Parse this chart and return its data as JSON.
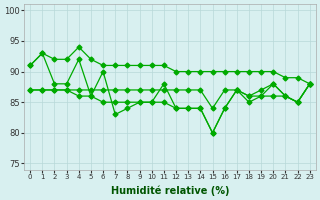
{
  "title": "",
  "xlabel": "Humidité relative (%)",
  "ylabel": "",
  "background_color": "#d8f0f0",
  "grid_color": "#b8d8d8",
  "line_color": "#00aa00",
  "marker_color": "#00aa00",
  "xlim": [
    -0.5,
    23.5
  ],
  "ylim": [
    74,
    101
  ],
  "yticks": [
    75,
    80,
    85,
    90,
    95,
    100
  ],
  "xtick_labels": [
    "0",
    "1",
    "2",
    "3",
    "4",
    "5",
    "6",
    "7",
    "8",
    "9",
    "10",
    "11",
    "12",
    "13",
    "14",
    "15",
    "16",
    "17",
    "18",
    "19",
    "20",
    "21",
    "22",
    "23"
  ],
  "series_top": [
    91,
    93,
    92,
    92,
    94,
    92,
    91,
    91,
    91,
    91,
    91,
    91,
    90,
    90,
    90,
    90,
    90,
    90,
    90,
    90,
    90,
    89,
    89,
    88
  ],
  "series_a": [
    91,
    93,
    88,
    88,
    92,
    86,
    90,
    83,
    84,
    85,
    85,
    88,
    84,
    84,
    84,
    80,
    84,
    87,
    86,
    87,
    88,
    86,
    85,
    88
  ],
  "series_b": [
    87,
    87,
    87,
    87,
    87,
    87,
    87,
    87,
    87,
    87,
    87,
    87,
    87,
    87,
    87,
    84,
    87,
    87,
    86,
    86,
    88,
    86,
    85,
    88
  ],
  "series_c": [
    87,
    87,
    87,
    87,
    86,
    86,
    85,
    85,
    85,
    85,
    85,
    85,
    84,
    84,
    84,
    80,
    84,
    87,
    85,
    86,
    86,
    86,
    85,
    88
  ]
}
